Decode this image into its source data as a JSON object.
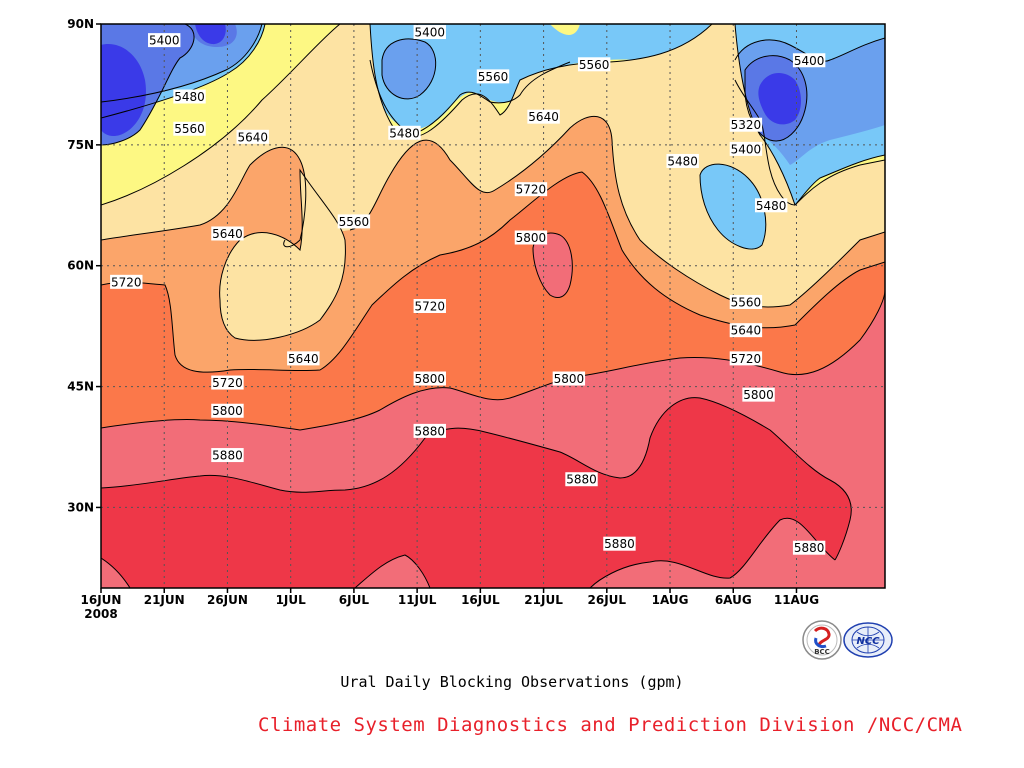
{
  "chart_data": {
    "type": "heatmap",
    "subtype": "filled-contour (Hovmoller)",
    "title": "Ural Daily Blocking Observations (gpm)",
    "xlabel": "",
    "ylabel": "",
    "x_tick_labels": [
      "16JUN",
      "21JUN",
      "26JUN",
      "1JUL",
      "6JUL",
      "11JUL",
      "16JUL",
      "21JUL",
      "26JUL",
      "1AUG",
      "6AUG",
      "11AUG"
    ],
    "x_year_label": "2008",
    "x_range": [
      "2008-06-16",
      "2008-08-17"
    ],
    "y_tick_labels": [
      "30N",
      "45N",
      "60N",
      "75N",
      "90N"
    ],
    "y_range": [
      20,
      90
    ],
    "contour_levels": [
      5240,
      5320,
      5400,
      5480,
      5560,
      5640,
      5720,
      5800,
      5880
    ],
    "level_colors": {
      "below_5320": "#3a3ae8",
      "5320_5400": "#5a78e6",
      "5400_5480": "#6aa0ee",
      "5480_5560": "#78c8f8",
      "5560_5640": "#fdf883",
      "5640_5720": "#fde3a3",
      "5720_5800": "#fba56a",
      "5800_5880": "#fb784a",
      "5880_5960": "#f26d78",
      "above_5960": "#ee3748"
    },
    "grid": true,
    "contour_labels": [
      {
        "text": "5400",
        "date": "2008-06-21",
        "lat": 88
      },
      {
        "text": "5480",
        "date": "2008-06-23",
        "lat": 81
      },
      {
        "text": "5560",
        "date": "2008-06-23",
        "lat": 77
      },
      {
        "text": "5640",
        "date": "2008-06-28",
        "lat": 76
      },
      {
        "text": "5640",
        "date": "2008-06-26",
        "lat": 64
      },
      {
        "text": "5720",
        "date": "2008-06-18",
        "lat": 58
      },
      {
        "text": "5720",
        "date": "2008-06-26",
        "lat": 45.5
      },
      {
        "text": "5800",
        "date": "2008-06-26",
        "lat": 42
      },
      {
        "text": "5880",
        "date": "2008-06-26",
        "lat": 36.5
      },
      {
        "text": "5640",
        "date": "2008-07-02",
        "lat": 48.5
      },
      {
        "text": "5560",
        "date": "2008-07-06",
        "lat": 65.5
      },
      {
        "text": "5480",
        "date": "2008-07-10",
        "lat": 76.5
      },
      {
        "text": "5400",
        "date": "2008-07-12",
        "lat": 89
      },
      {
        "text": "5720",
        "date": "2008-07-12",
        "lat": 55
      },
      {
        "text": "5800",
        "date": "2008-07-12",
        "lat": 46
      },
      {
        "text": "5880",
        "date": "2008-07-12",
        "lat": 39.5
      },
      {
        "text": "5560",
        "date": "2008-07-17",
        "lat": 83.5
      },
      {
        "text": "5720",
        "date": "2008-07-20",
        "lat": 69.5
      },
      {
        "text": "5800",
        "date": "2008-07-20",
        "lat": 63.5
      },
      {
        "text": "5640",
        "date": "2008-07-21",
        "lat": 78.5
      },
      {
        "text": "5800",
        "date": "2008-07-23",
        "lat": 46
      },
      {
        "text": "5560",
        "date": "2008-07-25",
        "lat": 85
      },
      {
        "text": "5880",
        "date": "2008-07-24",
        "lat": 33.5
      },
      {
        "text": "5880",
        "date": "2008-07-27",
        "lat": 25.5
      },
      {
        "text": "5480",
        "date": "2008-08-01",
        "lat": 73
      },
      {
        "text": "5320",
        "date": "2008-08-06",
        "lat": 77.5
      },
      {
        "text": "5400",
        "date": "2008-08-06",
        "lat": 74.5
      },
      {
        "text": "5400",
        "date": "2008-08-11",
        "lat": 85.5
      },
      {
        "text": "5480",
        "date": "2008-08-08",
        "lat": 67.5
      },
      {
        "text": "5560",
        "date": "2008-08-06",
        "lat": 55.5
      },
      {
        "text": "5640",
        "date": "2008-08-06",
        "lat": 52
      },
      {
        "text": "5720",
        "date": "2008-08-06",
        "lat": 48.5
      },
      {
        "text": "5800",
        "date": "2008-08-07",
        "lat": 44
      },
      {
        "text": "5880",
        "date": "2008-08-11",
        "lat": 25
      }
    ]
  },
  "footer": {
    "credit": "Climate System Diagnostics and Prediction Division /NCC/CMA"
  },
  "logos": {
    "left": {
      "name": "BCC logo",
      "text": "BCC"
    },
    "right": {
      "name": "NCC logo",
      "text": "NCC"
    }
  }
}
